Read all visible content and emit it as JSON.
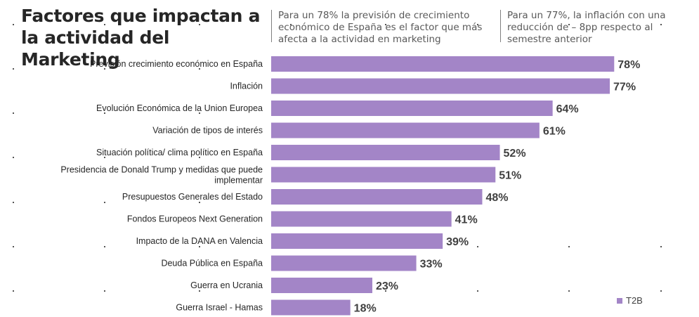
{
  "header": {
    "title": "Factores que impactan a la actividad del Marketing",
    "note_1": "Para un 78% la previsión de crecimiento económico de España es el factor que más afecta a la actividad en marketing",
    "note_2": "Para un 77%, la inflación con una reducción de – 8pp respecto al semestre anterior"
  },
  "colors": {
    "bar": "#a385c7"
  },
  "chart_data": {
    "type": "bar",
    "orientation": "horizontal",
    "categories": [
      "Previsión crecimiento económico en España",
      "Inflación",
      "Evolución Económica de la Union Europea",
      "Variación de tipos de interés",
      "Situación política/ clima político en España",
      "Presidencia de Donald Trump y medidas que puede implementar",
      "Presupuestos Generales del Estado",
      "Fondos Europeos Next Generation",
      "Impacto de la DANA en Valencia",
      "Deuda Pública en España",
      "Guerra en Ucrania",
      "Guerra Israel - Hamas"
    ],
    "series": [
      {
        "name": "T2B",
        "values": [
          78,
          77,
          64,
          61,
          52,
          51,
          48,
          41,
          39,
          33,
          23,
          18
        ]
      }
    ],
    "value_suffix": "%",
    "xlim": [
      0,
      100
    ],
    "grid": false,
    "legend": "bottom-right"
  }
}
